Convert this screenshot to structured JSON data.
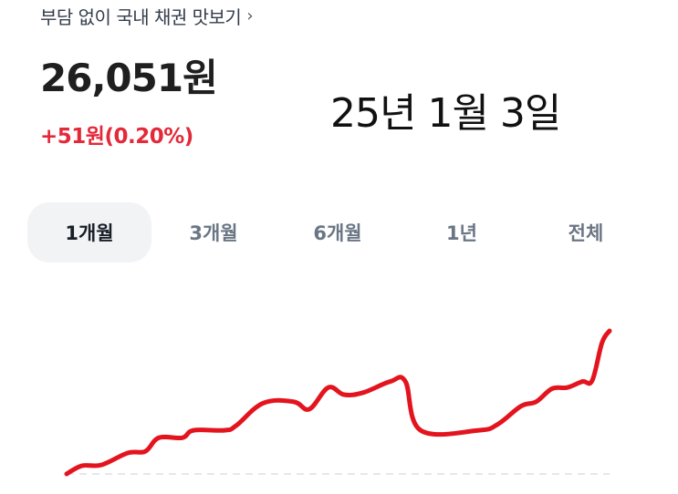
{
  "header": {
    "title": "부담 없이 국내 채권 맛보기",
    "chevron_icon": "chevron-right-icon",
    "price": "26,051원",
    "change": "+51원(0.20%)",
    "date_annotation": "25년 1월 3일"
  },
  "colors": {
    "up": "#e42939",
    "line": "#e3141e",
    "active_tab_bg": "#f2f3f5"
  },
  "tabs": [
    {
      "label": "1개월",
      "active": true
    },
    {
      "label": "3개월",
      "active": false
    },
    {
      "label": "6개월",
      "active": false
    },
    {
      "label": "1년",
      "active": false
    },
    {
      "label": "전체",
      "active": false
    }
  ],
  "chart_data": {
    "type": "line",
    "title": "",
    "xlabel": "",
    "ylabel": "",
    "grid": false,
    "baseline": "dashed",
    "note_units": "relative index (no axis printed)",
    "xlim": [
      0,
      100
    ],
    "ylim": [
      0,
      100
    ],
    "points": [
      [
        0,
        0
      ],
      [
        2.8,
        5.7
      ],
      [
        6.4,
        6.3
      ],
      [
        11.3,
        14.7
      ],
      [
        14.5,
        15.8
      ],
      [
        17,
        25.3
      ],
      [
        21.3,
        25.3
      ],
      [
        23.4,
        30.5
      ],
      [
        29.1,
        30.5
      ],
      [
        31.2,
        33.7
      ],
      [
        36.2,
        49.5
      ],
      [
        41.8,
        50.5
      ],
      [
        44.7,
        45.3
      ],
      [
        48.2,
        60.4
      ],
      [
        51.1,
        55.4
      ],
      [
        54.6,
        56.8
      ],
      [
        59.6,
        64.6
      ],
      [
        62.4,
        64.6
      ],
      [
        65.2,
        30.5
      ],
      [
        75.9,
        30.5
      ],
      [
        79.4,
        34.7
      ],
      [
        83.7,
        47.4
      ],
      [
        86.5,
        50.5
      ],
      [
        89.4,
        59.6
      ],
      [
        92.2,
        60.4
      ],
      [
        95,
        64.6
      ],
      [
        96.8,
        65.3
      ],
      [
        98.6,
        91.6
      ],
      [
        100,
        100
      ]
    ]
  }
}
